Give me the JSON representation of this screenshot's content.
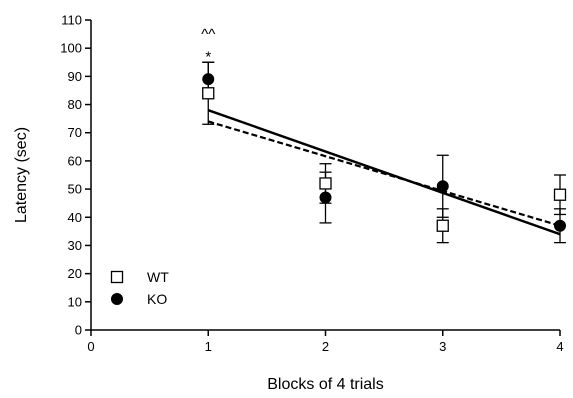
{
  "chart_data": {
    "type": "scatter",
    "xlabel": "Blocks of 4 trials",
    "ylabel": "Latency (sec)",
    "xlim": [
      0,
      4
    ],
    "ylim": [
      0,
      110
    ],
    "xticks": [
      "0",
      "1",
      "2",
      "3",
      "4"
    ],
    "yticks": [
      "0",
      "10",
      "20",
      "30",
      "40",
      "50",
      "60",
      "70",
      "80",
      "90",
      "100",
      "110"
    ],
    "grid": false,
    "legend": "bottom-left",
    "series": [
      {
        "name": "WT",
        "marker": "open-square",
        "color": "#000000",
        "x": [
          1,
          2,
          3,
          4
        ],
        "y": [
          84,
          52,
          37,
          48
        ],
        "error": [
          11,
          7,
          6,
          7
        ],
        "fit": {
          "style": "dashed",
          "x": [
            1,
            4
          ],
          "y": [
            74,
            37
          ]
        }
      },
      {
        "name": "KO",
        "marker": "filled-circle",
        "color": "#000000",
        "x": [
          1,
          2,
          3,
          4
        ],
        "y": [
          89,
          47,
          51,
          37
        ],
        "error": [
          6,
          9,
          11,
          6
        ],
        "fit": {
          "style": "solid",
          "x": [
            1,
            4
          ],
          "y": [
            78,
            34
          ]
        }
      }
    ],
    "annotations": [
      {
        "text": "^^",
        "x": 1,
        "y": 105
      },
      {
        "text": "*",
        "x": 1,
        "y": 97
      }
    ]
  }
}
